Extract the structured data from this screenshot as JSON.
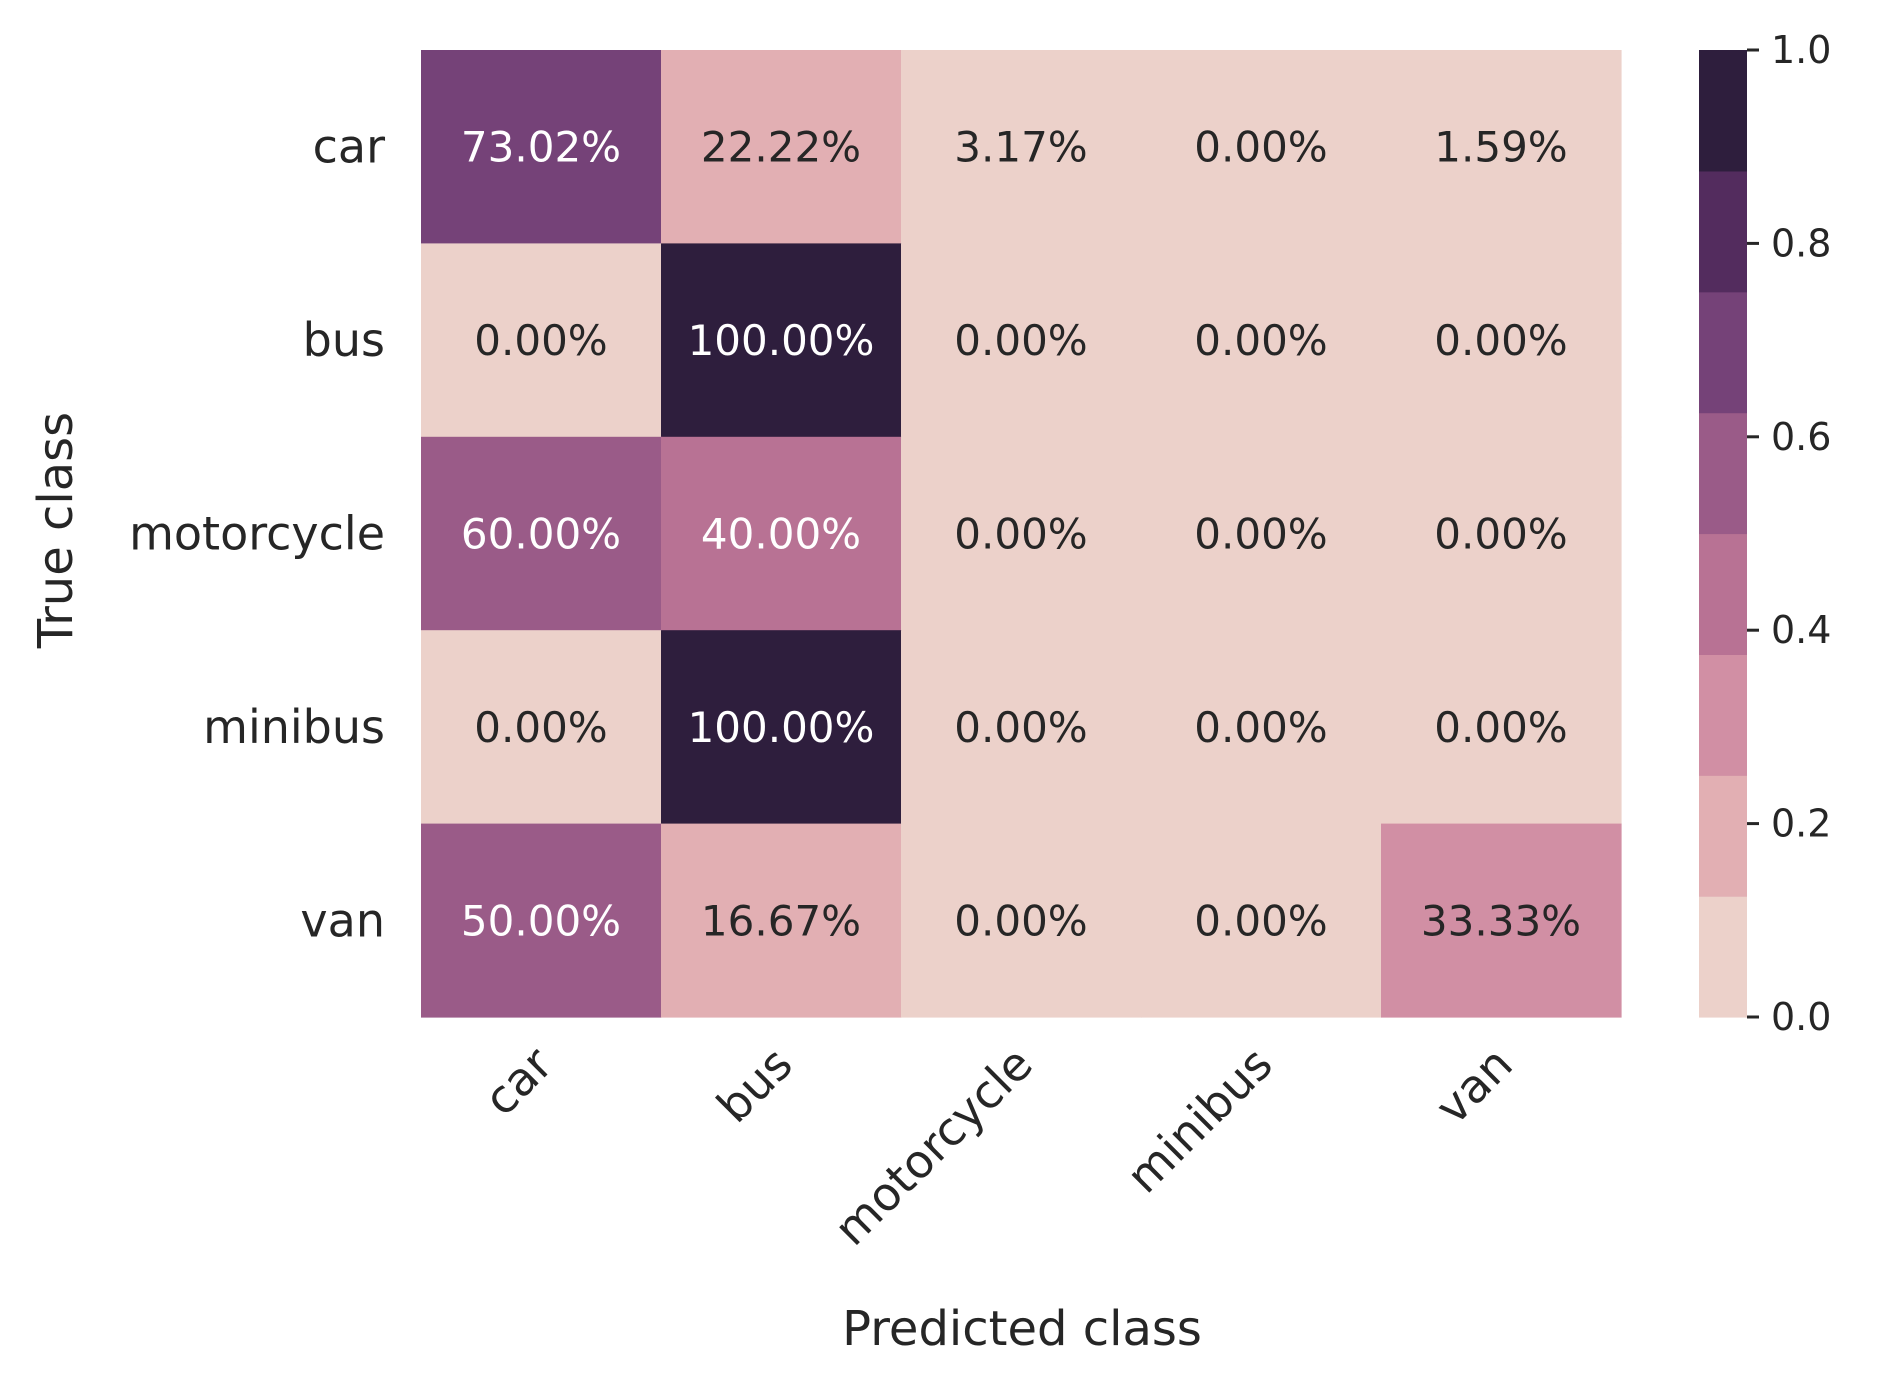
{
  "chart_data": {
    "type": "heatmap",
    "title": "",
    "xlabel": "Predicted class",
    "ylabel": "True class",
    "rows": [
      "car",
      "bus",
      "motorcycle",
      "minibus",
      "van"
    ],
    "columns": [
      "car",
      "bus",
      "motorcycle",
      "minibus",
      "van"
    ],
    "values": [
      [
        0.7302,
        0.2222,
        0.0317,
        0.0,
        0.0159
      ],
      [
        0.0,
        1.0,
        0.0,
        0.0,
        0.0
      ],
      [
        0.6,
        0.4,
        0.0,
        0.0,
        0.0
      ],
      [
        0.0,
        1.0,
        0.0,
        0.0,
        0.0
      ],
      [
        0.5,
        0.1667,
        0.0,
        0.0,
        0.3333
      ]
    ],
    "cell_labels": [
      [
        "73.02%",
        "22.22%",
        "3.17%",
        "0.00%",
        "1.59%"
      ],
      [
        "0.00%",
        "100.00%",
        "0.00%",
        "0.00%",
        "0.00%"
      ],
      [
        "60.00%",
        "40.00%",
        "0.00%",
        "0.00%",
        "0.00%"
      ],
      [
        "0.00%",
        "100.00%",
        "0.00%",
        "0.00%",
        "0.00%"
      ],
      [
        "50.00%",
        "16.67%",
        "0.00%",
        "0.00%",
        "33.33%"
      ]
    ],
    "colorbar": {
      "range": [
        0.0,
        1.0
      ],
      "ticks": [
        "0.0",
        "0.2",
        "0.4",
        "0.6",
        "0.8",
        "1.0"
      ],
      "colors": [
        "#ecd1ca",
        "#e2afb3",
        "#d18fa4",
        "#b87294",
        "#9a5b88",
        "#754278",
        "#532c5e",
        "#2e1e3d"
      ]
    },
    "grid": false
  }
}
